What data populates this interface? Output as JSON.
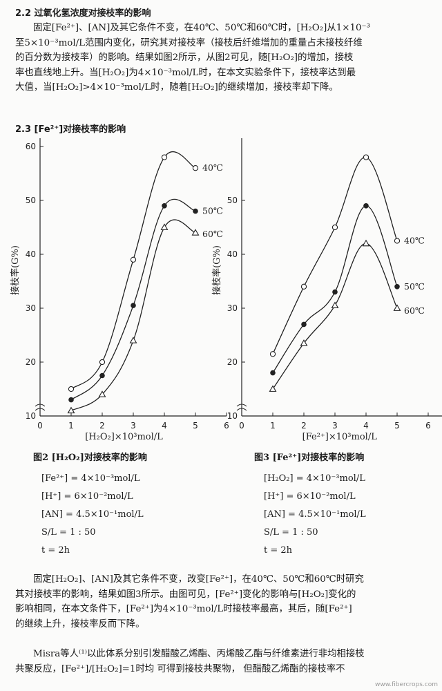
{
  "section_2_2": {
    "heading": "2.2  过氧化氢浓度对接枝率的影响",
    "lines": [
      "固定[Fe²⁺]、[AN]及其它条件不变，在40℃、50℃和60℃时，[H₂O₂]从1×10⁻³",
      "至5×10⁻³mol/L范围内变化，研究其对接枝率（接枝后纤维增加的重量占未接枝纤维",
      "的百分数为接枝率）的影响。结果如图2所示，从图2可见，随[H₂O₂]的增加，接枝",
      "率也直线地上升。当[H₂O₂]为4×10⁻³mol/L时，在本文实验条件下，接枝率达到最",
      "大值，当[H₂O₂]>4×10⁻³mol/L时，随着[H₂O₂]的继续增加，接枝率却下降。"
    ]
  },
  "section_2_3": {
    "heading": "2.3  [Fe²⁺]对接枝率的影响",
    "lines": [
      "固定[H₂O₂]、[AN]及其它条件不变，改变[Fe²⁺]，在40℃、50℃和60℃时研究",
      "其对接枝率的影响，结果如图3所示。由图可见，[Fe²⁺]变化的影响与[H₂O₂]变化的",
      "影响相同，在本文条件下，[Fe²⁺]为4×10⁻³mol/L时接枝率最高，其后，随[Fe²⁺]",
      "的继续上升，接枝率反而下降。"
    ]
  },
  "section_misra": {
    "lines": [
      "Misra等人⁽¹⁾以此体系分别引发醋酸乙烯酯、丙烯酸乙酯与纤维素进行非均相接枝",
      "共聚反应，[Fe²⁺]/[H₂O₂]=1时均 可得到接枝共聚物， 但醋酸乙烯酯的接枝率不"
    ]
  },
  "figure2": {
    "caption": "图2  [H₂O₂]对接枝率的影响",
    "conditions": [
      "[Fe²⁺] = 4×10⁻³mol/L",
      "[H⁺] = 6×10⁻²mol/L",
      "[AN] = 4.5×10⁻¹mol/L",
      "S/L = 1 : 50",
      "t = 2h"
    ]
  },
  "figure3": {
    "caption": "图3  [Fe²⁺]对接枝率的影响",
    "conditions": [
      "[H₂O₂] = 4×10⁻³mol/L",
      "[H⁺] = 6×10⁻²mol/L",
      "[AN] = 4.5×10⁻¹mol/L",
      "S/L = 1 : 50",
      "t = 2h"
    ]
  },
  "chart_data": [
    {
      "type": "line",
      "xlabel": "[H₂O₂]×10³mol/L",
      "ylabel": "接枝率(G%)",
      "xlim": [
        0,
        6
      ],
      "ylim": [
        10,
        60
      ],
      "x_ticks": [
        0,
        1,
        2,
        3,
        4,
        5,
        6
      ],
      "y_ticks": [
        10,
        20,
        30,
        40,
        50,
        60
      ],
      "y_axis_break": true,
      "x": [
        1,
        2,
        3,
        4,
        5
      ],
      "series": [
        {
          "name": "40℃",
          "marker": "open-circle",
          "values": [
            15,
            20,
            39,
            58,
            56
          ]
        },
        {
          "name": "50℃",
          "marker": "filled-circle",
          "values": [
            13,
            17.5,
            30.5,
            49,
            48
          ]
        },
        {
          "name": "60℃",
          "marker": "triangle",
          "values": [
            11,
            14,
            24,
            45,
            44
          ]
        }
      ]
    },
    {
      "type": "line",
      "xlabel": "[Fe²⁺]×10³mol/L",
      "ylabel": "接枝率(G%)",
      "xlim": [
        0,
        7
      ],
      "ylim": [
        10,
        60
      ],
      "x_ticks": [
        0,
        1,
        2,
        3,
        4,
        5,
        6,
        7
      ],
      "y_ticks": [
        10,
        20,
        30,
        40,
        50
      ],
      "y_axis_break": true,
      "x": [
        1,
        2,
        3,
        4,
        5
      ],
      "series": [
        {
          "name": "40℃",
          "marker": "open-circle",
          "values": [
            21.5,
            34,
            45,
            58,
            42.5
          ]
        },
        {
          "name": "50℃",
          "marker": "filled-circle",
          "values": [
            18,
            27,
            33,
            49,
            34
          ]
        },
        {
          "name": "60℃",
          "marker": "triangle",
          "values": [
            15,
            23.5,
            30.5,
            42,
            30
          ]
        }
      ]
    }
  ],
  "watermark": "www.fibercrops.com"
}
